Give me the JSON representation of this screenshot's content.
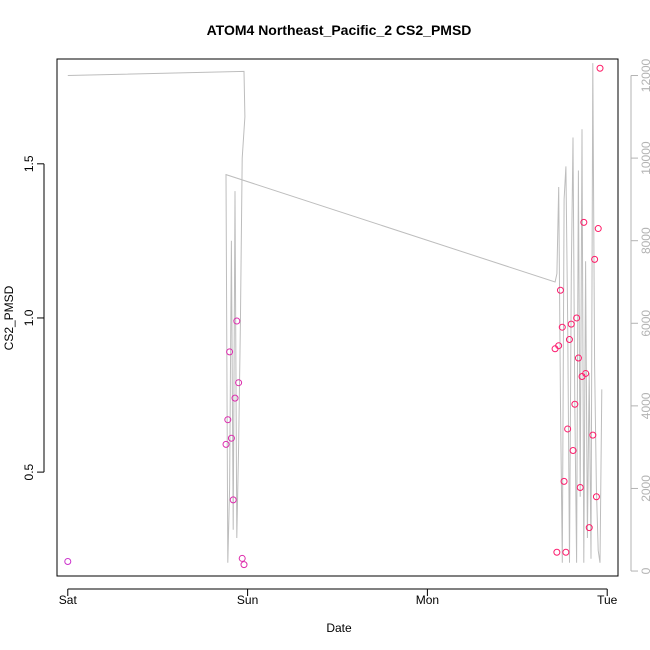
{
  "chart_data": {
    "type": "scatter",
    "title": "ATOM4 Northeast_Pacific_2 CS2_PMSD",
    "xlabel": "Date",
    "ylabel": "CS2_PMSD",
    "y2label": "",
    "x_ticks": [
      "Sat",
      "Sun",
      "Mon",
      "Tue"
    ],
    "xlim_days": [
      -0.06,
      3.06
    ],
    "ylim": [
      0.163,
      1.84
    ],
    "y_ticks": [
      "0.5",
      "1.0",
      "1.5"
    ],
    "y2lim": [
      -120,
      12400
    ],
    "y2_ticks": [
      "0",
      "2000",
      "4000",
      "6000",
      "8000",
      "10000",
      "12000"
    ],
    "grid": false,
    "scatter_color_range": [
      "#cc33cc",
      "#ff1a66"
    ],
    "line_color": "#bdbdbd",
    "series": [
      {
        "kind": "points",
        "axis": "left",
        "x_days": [
          0.0,
          0.88,
          0.89,
          0.9,
          0.91,
          0.92,
          0.93,
          0.94,
          0.95,
          0.97,
          0.98,
          2.71,
          2.72,
          2.73,
          2.74,
          2.75,
          2.76,
          2.77,
          2.78,
          2.79,
          2.8,
          2.81,
          2.82,
          2.83,
          2.84,
          2.85,
          2.86,
          2.87,
          2.88,
          2.9,
          2.92,
          2.93,
          2.94,
          2.95,
          2.96
        ],
        "y": [
          0.21,
          0.59,
          0.67,
          0.89,
          0.61,
          0.41,
          0.74,
          0.99,
          0.79,
          0.22,
          0.2,
          0.9,
          0.24,
          0.91,
          1.09,
          0.97,
          0.47,
          0.24,
          0.64,
          0.93,
          0.98,
          0.57,
          0.72,
          1.0,
          0.87,
          0.45,
          0.81,
          1.31,
          0.82,
          0.32,
          0.62,
          1.19,
          0.42,
          1.29,
          1.81
        ]
      },
      {
        "kind": "line",
        "axis": "right",
        "x_days": [
          0.0,
          0.98,
          0.985,
          0.97,
          0.96,
          0.95,
          0.94,
          0.93,
          0.92,
          0.91,
          0.9,
          0.89,
          0.88,
          2.71,
          2.72,
          2.73,
          2.74,
          2.75,
          2.76,
          2.77,
          2.78,
          2.79,
          2.8,
          2.81,
          2.82,
          2.83,
          2.84,
          2.85,
          2.86,
          2.87,
          2.88,
          2.89,
          2.9,
          2.91,
          2.92,
          2.93,
          2.94,
          2.95,
          2.96,
          2.97
        ],
        "y": [
          12000,
          12100,
          11000,
          10000,
          6000,
          3000,
          800,
          9200,
          1000,
          8000,
          2000,
          200,
          9600,
          7000,
          7200,
          9300,
          4000,
          200,
          9000,
          9800,
          6000,
          200,
          7200,
          10500,
          4000,
          200,
          9700,
          1800,
          10700,
          200,
          7500,
          800,
          4800,
          300,
          12300,
          5000,
          2000,
          500,
          200,
          4400
        ]
      }
    ]
  }
}
